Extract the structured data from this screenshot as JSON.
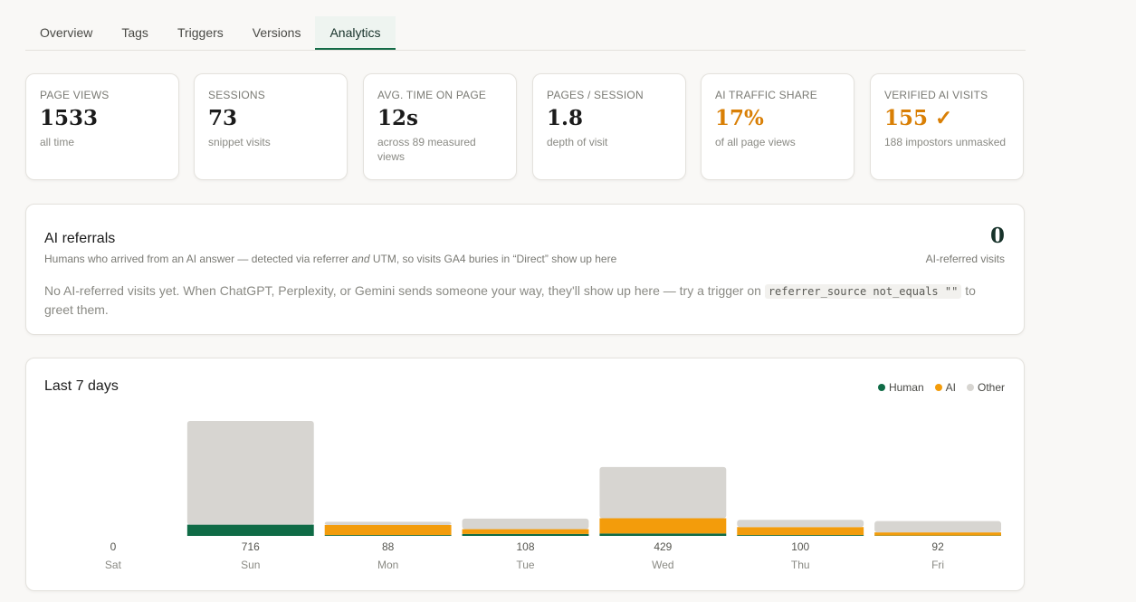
{
  "tabs": [
    {
      "label": "Overview"
    },
    {
      "label": "Tags"
    },
    {
      "label": "Triggers"
    },
    {
      "label": "Versions"
    },
    {
      "label": "Analytics",
      "active": true
    }
  ],
  "stats": [
    {
      "label": "PAGE VIEWS",
      "value": "1533",
      "sub": "all time"
    },
    {
      "label": "SESSIONS",
      "value": "73",
      "sub": "snippet visits"
    },
    {
      "label": "AVG. TIME ON PAGE",
      "value": "12s",
      "sub": "across 89 measured views"
    },
    {
      "label": "PAGES / SESSION",
      "value": "1.8",
      "sub": "depth of visit"
    },
    {
      "label": "AI TRAFFIC SHARE",
      "value": "17%",
      "sub": "of all page views"
    },
    {
      "label": "VERIFIED AI VISITS",
      "value": "155 ✓",
      "sub": "188 impostors unmasked"
    }
  ],
  "referrals": {
    "title": "AI referrals",
    "sub_before": "Humans who arrived from an AI answer — detected via referrer ",
    "sub_em": "and",
    "sub_after": " UTM, so visits GA4 buries in “Direct” show up here",
    "count": "0",
    "count_label": "AI-referred visits",
    "empty_before": "No AI-referred visits yet. When ChatGPT, Perplexity, or Gemini sends someone your way, they'll show up here — try a trigger on ",
    "empty_code": "referrer_source not_equals \"\"",
    "empty_after": " to greet them."
  },
  "colors": {
    "human": "#0f6b46",
    "ai": "#f39c0b",
    "other": "#d7d5d1",
    "accent": "#d97f05"
  },
  "chart_data": {
    "type": "bar",
    "title": "Last 7 days",
    "categories": [
      "Sat",
      "Sun",
      "Mon",
      "Tue",
      "Wed",
      "Thu",
      "Fri"
    ],
    "totals": [
      0,
      716,
      88,
      108,
      429,
      100,
      92
    ],
    "series": [
      {
        "name": "Human",
        "values": [
          0,
          70,
          5,
          12,
          15,
          5,
          2
        ]
      },
      {
        "name": "AI",
        "values": [
          0,
          0,
          63,
          30,
          95,
          50,
          20
        ]
      },
      {
        "name": "Other",
        "values": [
          0,
          646,
          20,
          66,
          319,
          45,
          70
        ]
      }
    ],
    "stacked": true,
    "legend": "top-right"
  }
}
